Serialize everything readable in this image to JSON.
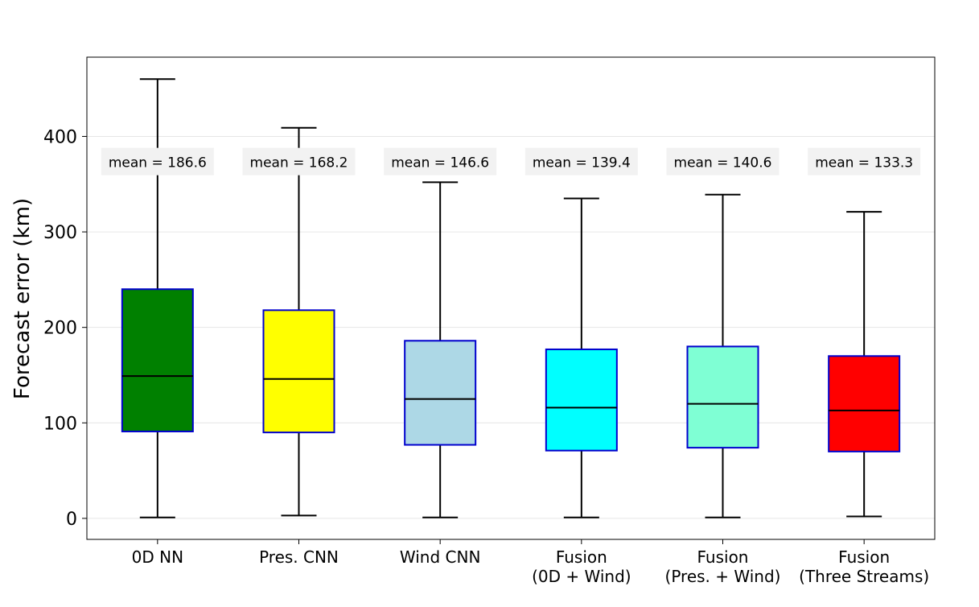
{
  "chart_data": {
    "type": "boxplot",
    "ylabel": "Forecast error (km)",
    "xlabel": "",
    "title": "",
    "ylim": [
      -22,
      483
    ],
    "yticks": [
      0,
      100,
      200,
      300,
      400
    ],
    "grid": "horizontal",
    "categories": [
      {
        "label_lines": [
          "0D NN"
        ]
      },
      {
        "label_lines": [
          "Pres. CNN"
        ]
      },
      {
        "label_lines": [
          "Wind CNN"
        ]
      },
      {
        "label_lines": [
          "Fusion",
          "(0D + Wind)"
        ]
      },
      {
        "label_lines": [
          "Fusion",
          "(Pres. + Wind)"
        ]
      },
      {
        "label_lines": [
          "Fusion",
          "(Three Streams)"
        ]
      }
    ],
    "boxes": [
      {
        "whisker_low": 1,
        "q1": 91,
        "median": 149,
        "q3": 240,
        "whisker_high": 460,
        "mean_label": "mean = 186.6",
        "color": "#008000"
      },
      {
        "whisker_low": 3,
        "q1": 90,
        "median": 146,
        "q3": 218,
        "whisker_high": 409,
        "mean_label": "mean = 168.2",
        "color": "#ffff00"
      },
      {
        "whisker_low": 1,
        "q1": 77,
        "median": 125,
        "q3": 186,
        "whisker_high": 352,
        "mean_label": "mean = 146.6",
        "color": "#add8e6"
      },
      {
        "whisker_low": 1,
        "q1": 71,
        "median": 116,
        "q3": 177,
        "whisker_high": 335,
        "mean_label": "mean = 139.4",
        "color": "#00ffff"
      },
      {
        "whisker_low": 1,
        "q1": 74,
        "median": 120,
        "q3": 180,
        "whisker_high": 339,
        "mean_label": "mean = 140.6",
        "color": "#7fffd4"
      },
      {
        "whisker_low": 2,
        "q1": 70,
        "median": 113,
        "q3": 170,
        "whisker_high": 321,
        "mean_label": "mean = 133.3",
        "color": "#ff0000"
      }
    ],
    "mean_label_y": 372,
    "box_edge_color": "#0000cd",
    "median_color": "#000000",
    "mean_label_bg": "#f2f2f2"
  }
}
